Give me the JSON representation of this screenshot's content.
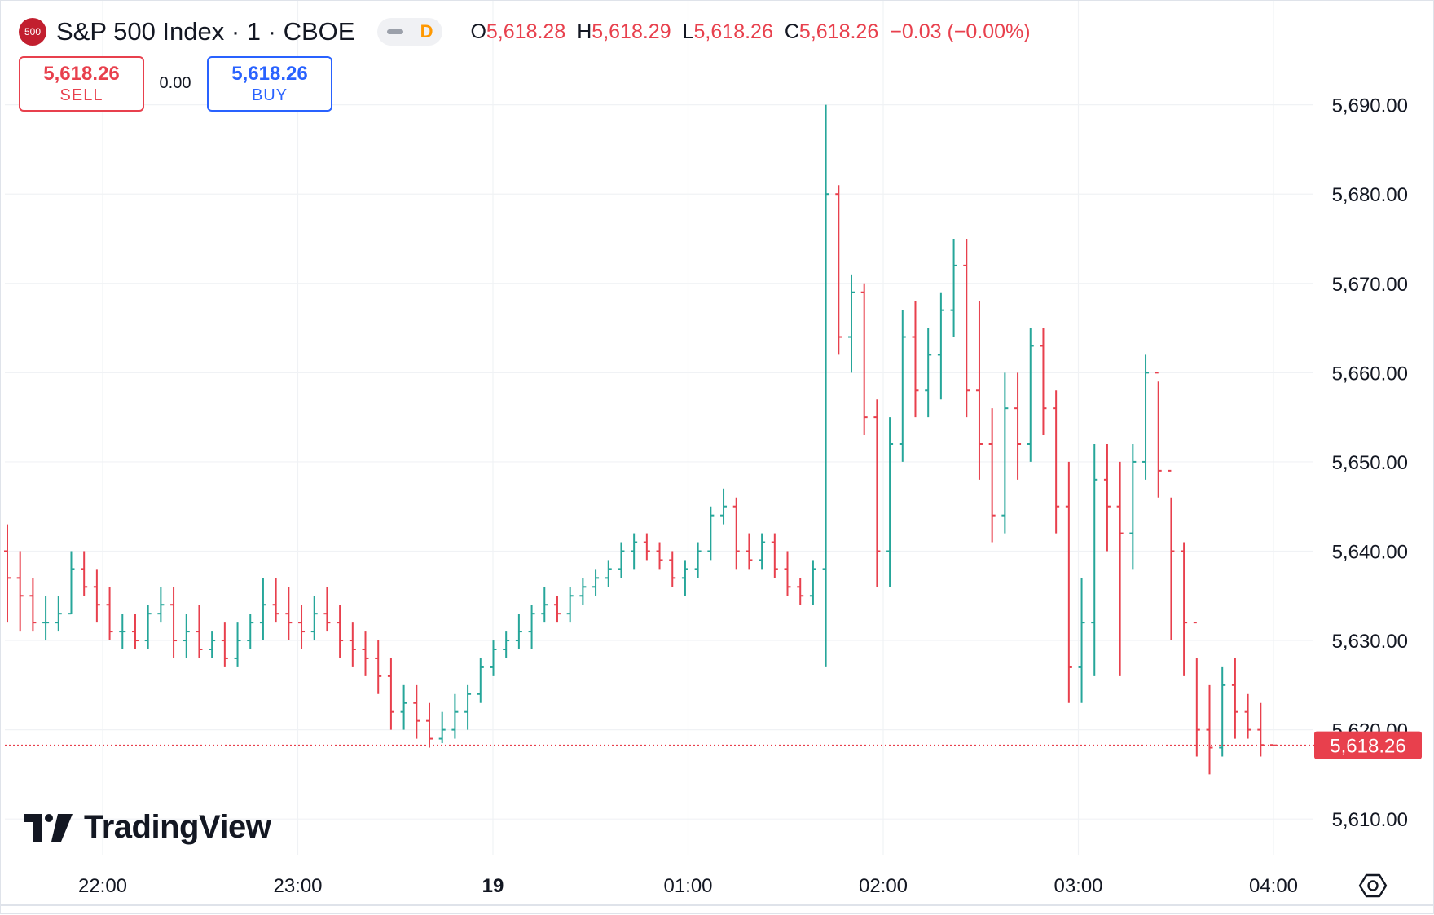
{
  "header": {
    "badge": "500",
    "title": "S&P 500 Index · 1 · CBOE",
    "interval_badge": "D",
    "ohlc": {
      "o_label": "O",
      "o_value": "5,618.28",
      "h_label": "H",
      "h_value": "5,618.29",
      "l_label": "L",
      "l_value": "5,618.26",
      "c_label": "C",
      "c_value": "5,618.26",
      "change": "−0.03 (−0.00%)"
    }
  },
  "trade": {
    "sell_price": "5,618.26",
    "sell_label": "SELL",
    "spread": "0.00",
    "buy_price": "5,618.26",
    "buy_label": "BUY"
  },
  "branding": {
    "logo_text": "TradingView"
  },
  "colors": {
    "up": "#26a69a",
    "down": "#e8404d",
    "grid": "#f0f2f5",
    "text": "#131722",
    "last_price_bg": "#e8404d"
  },
  "icons": {
    "settings": "settings-hexagon-icon"
  },
  "chart_data": {
    "type": "ohlc",
    "title": "S&P 500 Index · 1 · CBOE",
    "interval": "1 minute",
    "last_price": 5618.26,
    "last_price_label": "5,618.26",
    "ylim": [
      5606,
      5698
    ],
    "y_ticks": [
      5610,
      5620,
      5630,
      5640,
      5650,
      5660,
      5670,
      5680,
      5690
    ],
    "y_tick_labels": [
      "5,610.00",
      "5,620.00",
      "5,630.00",
      "5,640.00",
      "5,650.00",
      "5,660.00",
      "5,670.00",
      "5,680.00",
      "5,690.00"
    ],
    "x_ticks": [
      "22:00",
      "23:00",
      "19",
      "01:00",
      "02:00",
      "03:00",
      "04:00"
    ],
    "x_tick_bold": [
      false,
      false,
      true,
      false,
      false,
      false,
      false
    ],
    "start_time": "21:30",
    "x_range": [
      -32,
      1000
    ],
    "grid": true,
    "bars_approx": [
      [
        5640,
        5643,
        5632,
        5637
      ],
      [
        5637,
        5640,
        5631,
        5635
      ],
      [
        5635,
        5637,
        5631,
        5632
      ],
      [
        5632,
        5635,
        5630,
        5632
      ],
      [
        5632,
        5635,
        5631,
        5633
      ],
      [
        5633,
        5640,
        5633,
        5638
      ],
      [
        5638,
        5640,
        5635,
        5636
      ],
      [
        5636,
        5638,
        5632,
        5634
      ],
      [
        5634,
        5636,
        5630,
        5631
      ],
      [
        5631,
        5633,
        5629,
        5631
      ],
      [
        5631,
        5633,
        5629,
        5630
      ],
      [
        5630,
        5634,
        5629,
        5633
      ],
      [
        5633,
        5636,
        5632,
        5634
      ],
      [
        5634,
        5636,
        5628,
        5630
      ],
      [
        5630,
        5633,
        5628,
        5631
      ],
      [
        5631,
        5634,
        5628,
        5629
      ],
      [
        5629,
        5631,
        5628,
        5630
      ],
      [
        5630,
        5632,
        5627,
        5628
      ],
      [
        5628,
        5632,
        5627,
        5630
      ],
      [
        5630,
        5633,
        5629,
        5632
      ],
      [
        5632,
        5637,
        5630,
        5634
      ],
      [
        5634,
        5637,
        5632,
        5633
      ],
      [
        5633,
        5636,
        5630,
        5632
      ],
      [
        5632,
        5634,
        5629,
        5631
      ],
      [
        5631,
        5635,
        5630,
        5633
      ],
      [
        5633,
        5636,
        5631,
        5632
      ],
      [
        5632,
        5634,
        5628,
        5630
      ],
      [
        5630,
        5632,
        5627,
        5629
      ],
      [
        5629,
        5631,
        5626,
        5628
      ],
      [
        5628,
        5630,
        5624,
        5626
      ],
      [
        5626,
        5628,
        5620,
        5622
      ],
      [
        5622,
        5625,
        5620,
        5623
      ],
      [
        5623,
        5625,
        5619,
        5621
      ],
      [
        5621,
        5623,
        5618,
        5619
      ],
      [
        5619,
        5622,
        5618.5,
        5620
      ],
      [
        5620,
        5624,
        5619,
        5622
      ],
      [
        5622,
        5625,
        5620,
        5624
      ],
      [
        5624,
        5628,
        5623,
        5627
      ],
      [
        5627,
        5630,
        5626,
        5629
      ],
      [
        5629,
        5631,
        5628,
        5630
      ],
      [
        5630,
        5633,
        5629,
        5631
      ],
      [
        5631,
        5634,
        5629,
        5633
      ],
      [
        5633,
        5636,
        5632,
        5634
      ],
      [
        5634,
        5635,
        5632,
        5633
      ],
      [
        5633,
        5636,
        5632,
        5635
      ],
      [
        5635,
        5637,
        5634,
        5636
      ],
      [
        5636,
        5638,
        5635,
        5637
      ],
      [
        5637,
        5639,
        5636,
        5638
      ],
      [
        5638,
        5641,
        5637,
        5640
      ],
      [
        5640,
        5642,
        5638,
        5641
      ],
      [
        5641,
        5642,
        5639,
        5640
      ],
      [
        5640,
        5641,
        5638,
        5639
      ],
      [
        5639,
        5640,
        5636,
        5637
      ],
      [
        5637,
        5639,
        5635,
        5638
      ],
      [
        5638,
        5641,
        5637,
        5640
      ],
      [
        5640,
        5645,
        5639,
        5644
      ],
      [
        5644,
        5647,
        5643,
        5645
      ],
      [
        5645,
        5646,
        5638,
        5640
      ],
      [
        5640,
        5642,
        5638,
        5639
      ],
      [
        5639,
        5642,
        5638,
        5641
      ],
      [
        5641,
        5642,
        5637,
        5638
      ],
      [
        5638,
        5640,
        5635,
        5636
      ],
      [
        5636,
        5637,
        5634,
        5635
      ],
      [
        5635,
        5639,
        5634,
        5638
      ],
      [
        5638,
        5690,
        5627,
        5680
      ],
      [
        5680,
        5681,
        5662,
        5664
      ],
      [
        5664,
        5671,
        5660,
        5669
      ],
      [
        5669,
        5670,
        5653,
        5655
      ],
      [
        5655,
        5657,
        5636,
        5640
      ],
      [
        5640,
        5655,
        5636,
        5652
      ],
      [
        5652,
        5667,
        5650,
        5664
      ],
      [
        5664,
        5668,
        5655,
        5658
      ],
      [
        5658,
        5665,
        5655,
        5662
      ],
      [
        5662,
        5669,
        5657,
        5667
      ],
      [
        5667,
        5675,
        5664,
        5672
      ],
      [
        5672,
        5675,
        5655,
        5658
      ],
      [
        5658,
        5668,
        5648,
        5652
      ],
      [
        5652,
        5656,
        5641,
        5644
      ],
      [
        5644,
        5660,
        5642,
        5656
      ],
      [
        5656,
        5660,
        5648,
        5652
      ],
      [
        5652,
        5665,
        5650,
        5663
      ],
      [
        5663,
        5665,
        5653,
        5656
      ],
      [
        5656,
        5658,
        5642,
        5645
      ],
      [
        5645,
        5650,
        5623,
        5627
      ],
      [
        5627,
        5637,
        5623,
        5632
      ],
      [
        5632,
        5652,
        5626,
        5648
      ],
      [
        5648,
        5652,
        5640,
        5645
      ],
      [
        5645,
        5650,
        5626,
        5642
      ],
      [
        5642,
        5652,
        5638,
        5650
      ],
      [
        5650,
        5662,
        5648,
        5660
      ],
      [
        5660,
        5659,
        5646,
        5649
      ],
      [
        5649,
        5646,
        5630,
        5640
      ],
      [
        5640,
        5641,
        5626,
        5632
      ],
      [
        5632,
        5628,
        5617,
        5620
      ],
      [
        5620,
        5625,
        5615,
        5618
      ],
      [
        5618,
        5627,
        5617,
        5625
      ],
      [
        5625,
        5628,
        5619,
        5622
      ],
      [
        5622,
        5624,
        5619,
        5620
      ],
      [
        5620,
        5623,
        5617,
        5618.3
      ],
      [
        5618.3,
        5618.3,
        5618.26,
        5618.26
      ]
    ]
  }
}
